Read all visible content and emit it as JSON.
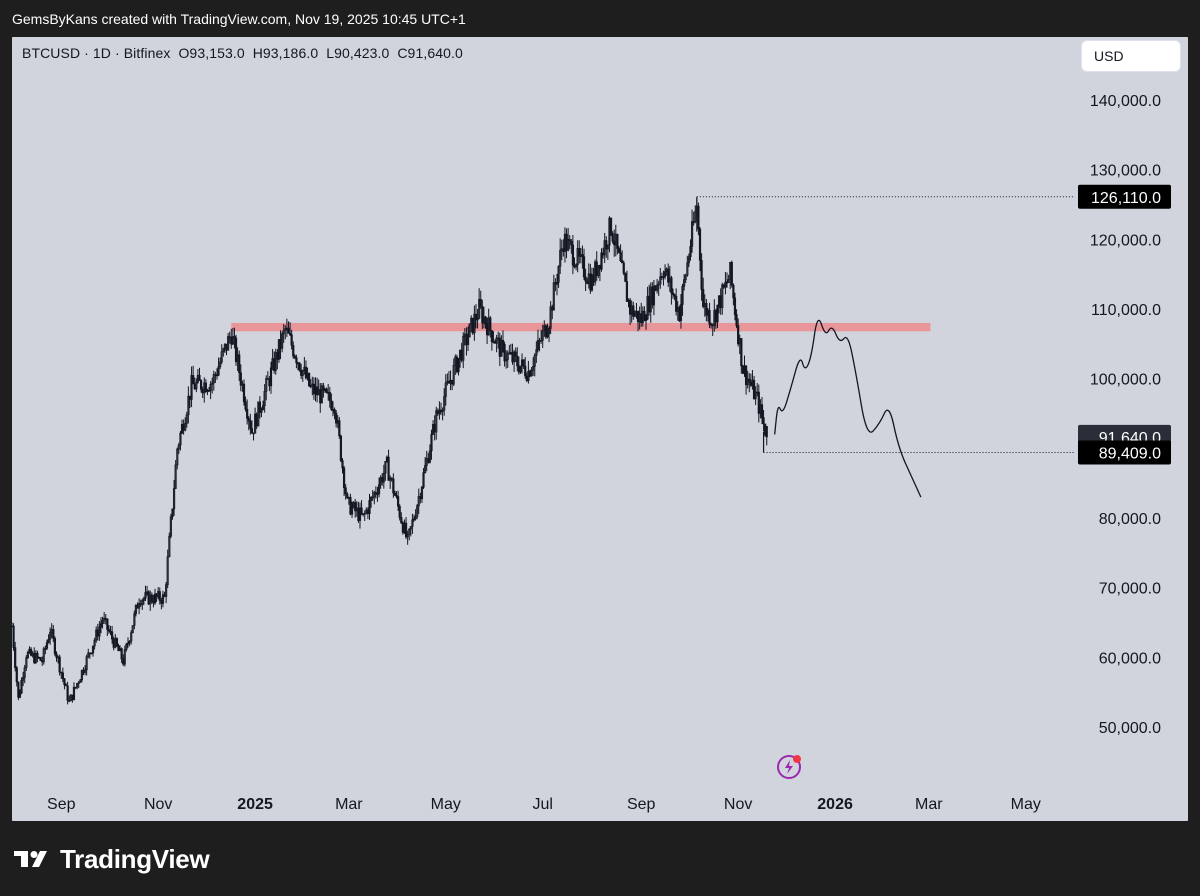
{
  "header": {
    "caption": "GemsByKans created with TradingView.com, Nov 19, 2025 10:45 UTC+1"
  },
  "toolbar": {
    "symbol_info": "BTCUSD · 1D · Bitfinex",
    "ohlc": "O93,153.0  H93,186.0  L90,423.0  C91,640.0",
    "currency": "USD"
  },
  "footer": {
    "brand": "TradingView"
  },
  "colors": {
    "background": "#d1d4dc",
    "frame": "#1e1e1e",
    "candles": "#131722",
    "resistance_zone": "#e8969a",
    "last_price_label": "#2a2e39"
  },
  "icons": [
    "tradingview-logo-icon",
    "lightning-sparkle-icon"
  ],
  "chart_data": {
    "type": "candlestick",
    "title": "",
    "symbol": "BTCUSD",
    "interval": "1D",
    "exchange": "Bitfinex",
    "ylim": [
      43000,
      152000
    ],
    "grid": false,
    "y_ticks": [
      "140,000.0",
      "130,000.0",
      "120,000.0",
      "110,000.0",
      "100,000.0",
      "80,000.0",
      "70,000.0",
      "60,000.0",
      "50,000.0"
    ],
    "y_tick_values": [
      140000,
      130000,
      120000,
      110000,
      100000,
      80000,
      70000,
      60000,
      50000
    ],
    "x_ticks": [
      "Sep",
      "Nov",
      "2025",
      "Mar",
      "May",
      "Jul",
      "Sep",
      "Nov",
      "2026",
      "Mar",
      "May"
    ],
    "x_tick_dates": [
      "2024-09-01",
      "2024-11-01",
      "2025-01-01",
      "2025-03-01",
      "2025-05-01",
      "2025-07-01",
      "2025-09-01",
      "2025-11-01",
      "2026-01-01",
      "2026-03-01",
      "2026-05-01"
    ],
    "x_tick_bold": [
      false,
      false,
      true,
      false,
      false,
      false,
      false,
      false,
      true,
      false,
      false
    ],
    "price_path": [
      {
        "date": "2024-08-01",
        "close": 64500
      },
      {
        "date": "2024-08-05",
        "close": 54000
      },
      {
        "date": "2024-08-10",
        "close": 60500
      },
      {
        "date": "2024-08-20",
        "close": 59500
      },
      {
        "date": "2024-08-25",
        "close": 64000
      },
      {
        "date": "2024-09-06",
        "close": 53500
      },
      {
        "date": "2024-09-15",
        "close": 58500
      },
      {
        "date": "2024-09-27",
        "close": 65500
      },
      {
        "date": "2024-10-10",
        "close": 59500
      },
      {
        "date": "2024-10-20",
        "close": 68500
      },
      {
        "date": "2024-11-05",
        "close": 68500
      },
      {
        "date": "2024-11-13",
        "close": 90000
      },
      {
        "date": "2024-11-22",
        "close": 99000
      },
      {
        "date": "2024-12-05",
        "close": 99500
      },
      {
        "date": "2024-12-17",
        "close": 106500
      },
      {
        "date": "2024-12-30",
        "close": 92500
      },
      {
        "date": "2025-01-07",
        "close": 98000
      },
      {
        "date": "2025-01-20",
        "close": 107000
      },
      {
        "date": "2025-02-05",
        "close": 98500
      },
      {
        "date": "2025-02-20",
        "close": 96500
      },
      {
        "date": "2025-02-28",
        "close": 82000
      },
      {
        "date": "2025-03-10",
        "close": 80000
      },
      {
        "date": "2025-03-25",
        "close": 87500
      },
      {
        "date": "2025-04-07",
        "close": 76500
      },
      {
        "date": "2025-04-15",
        "close": 84000
      },
      {
        "date": "2025-04-25",
        "close": 94500
      },
      {
        "date": "2025-05-10",
        "close": 103500
      },
      {
        "date": "2025-05-22",
        "close": 110000
      },
      {
        "date": "2025-06-05",
        "close": 104000
      },
      {
        "date": "2025-06-22",
        "close": 101000
      },
      {
        "date": "2025-07-05",
        "close": 108500
      },
      {
        "date": "2025-07-14",
        "close": 120000
      },
      {
        "date": "2025-08-01",
        "close": 114000
      },
      {
        "date": "2025-08-13",
        "close": 122000
      },
      {
        "date": "2025-08-25",
        "close": 110000
      },
      {
        "date": "2025-09-01",
        "close": 108500
      },
      {
        "date": "2025-09-15",
        "close": 116000
      },
      {
        "date": "2025-09-25",
        "close": 109500
      },
      {
        "date": "2025-10-06",
        "close": 125000
      },
      {
        "date": "2025-10-10",
        "close": 110500
      },
      {
        "date": "2025-10-16",
        "close": 108500
      },
      {
        "date": "2025-10-27",
        "close": 115000
      },
      {
        "date": "2025-11-04",
        "close": 101500
      },
      {
        "date": "2025-11-13",
        "close": 97000
      },
      {
        "date": "2025-11-19",
        "close": 91640
      }
    ],
    "last_candle": {
      "open": 93153.0,
      "high": 93186.0,
      "low": 90423.0,
      "close": 91640.0
    },
    "resistance_zone": {
      "low": 106800,
      "high": 108000,
      "from": "2024-12-17",
      "to": "2026-03-02"
    },
    "high_marker": {
      "value": 126110.0,
      "label": "126,110.0",
      "date": "2025-10-06"
    },
    "low_marker": {
      "value": 89409.0,
      "label": "89,409.0",
      "date": "2025-11-17"
    },
    "last_price": {
      "value": 91640.0,
      "label": "91,640.0"
    },
    "projection_path": [
      {
        "date": "2025-11-24",
        "value": 92000
      },
      {
        "date": "2025-11-26",
        "value": 96500
      },
      {
        "date": "2025-11-29",
        "value": 94800
      },
      {
        "date": "2025-12-04",
        "value": 98500
      },
      {
        "date": "2025-12-10",
        "value": 103500
      },
      {
        "date": "2025-12-13",
        "value": 101000
      },
      {
        "date": "2025-12-17",
        "value": 103000
      },
      {
        "date": "2025-12-21",
        "value": 109500
      },
      {
        "date": "2025-12-26",
        "value": 106000
      },
      {
        "date": "2025-12-30",
        "value": 107800
      },
      {
        "date": "2026-01-04",
        "value": 105000
      },
      {
        "date": "2026-01-09",
        "value": 106500
      },
      {
        "date": "2026-01-14",
        "value": 101000
      },
      {
        "date": "2026-01-21",
        "value": 91500
      },
      {
        "date": "2026-01-29",
        "value": 93500
      },
      {
        "date": "2026-02-04",
        "value": 96500
      },
      {
        "date": "2026-02-10",
        "value": 90000
      },
      {
        "date": "2026-02-19",
        "value": 85500
      },
      {
        "date": "2026-02-24",
        "value": 83000
      }
    ]
  }
}
